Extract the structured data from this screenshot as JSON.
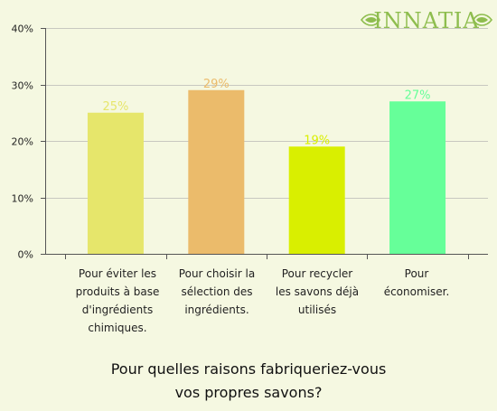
{
  "logo": {
    "text": "INNATIA",
    "color": "#8ebd4e"
  },
  "chart_data": {
    "type": "bar",
    "title_lines": [
      "Pour quelles raisons fabriqueriez-vous",
      "vos propres savons?"
    ],
    "categories": [
      [
        "Pour éviter les",
        "produits à base",
        "d'ingrédients",
        "chimiques."
      ],
      [
        "Pour choisir la",
        "sélection des",
        "ingrédients."
      ],
      [
        "Pour recycler",
        "les savons déjà",
        "utilisés"
      ],
      [
        "Pour",
        "économiser."
      ]
    ],
    "values": [
      25,
      29,
      19,
      27
    ],
    "value_labels": [
      "25%",
      "29%",
      "19%",
      "27%"
    ],
    "colors": [
      "#e6e66b",
      "#ebbb6b",
      "#d9ef00",
      "#66ff99"
    ],
    "yticks": [
      "0%",
      "10%",
      "20%",
      "30%",
      "40%"
    ],
    "ylim": [
      0,
      40
    ],
    "grid": true,
    "xlabel": "",
    "ylabel": ""
  }
}
